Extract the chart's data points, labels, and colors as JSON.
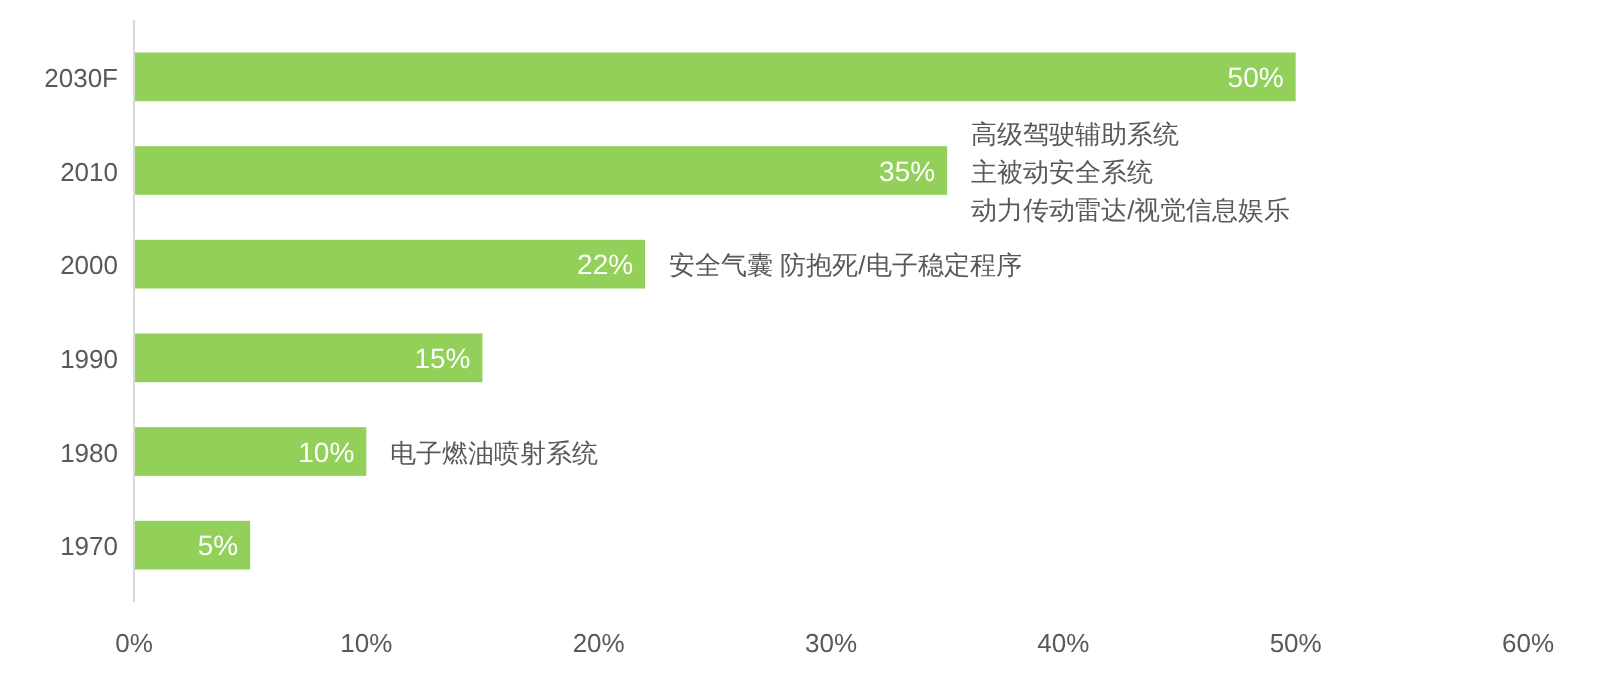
{
  "chart_data": {
    "type": "bar",
    "orientation": "horizontal",
    "categories": [
      "2030F",
      "2010",
      "2000",
      "1990",
      "1980",
      "1970"
    ],
    "values": [
      50,
      35,
      22,
      15,
      10,
      5
    ],
    "value_labels": [
      "50%",
      "35%",
      "22%",
      "15%",
      "10%",
      "5%"
    ],
    "color": "#92d05a",
    "xlim": [
      0,
      60
    ],
    "xticks": [
      {
        "value": 0,
        "label": "0%"
      },
      {
        "value": 10,
        "label": "10%"
      },
      {
        "value": 20,
        "label": "20%"
      },
      {
        "value": 30,
        "label": "30%"
      },
      {
        "value": 40,
        "label": "40%"
      },
      {
        "value": 50,
        "label": "50%"
      },
      {
        "value": 60,
        "label": "60%"
      }
    ],
    "grid": false,
    "annotations": [
      {
        "text": "高级驾驶辅助系统",
        "x": 35,
        "y": "2010"
      },
      {
        "text": "主被动安全系统",
        "x": 35,
        "y": "2010"
      },
      {
        "text": "动力传动雷达/视觉信息娱乐",
        "x": 35,
        "y": "2010"
      },
      {
        "text": "安全气囊 防抱死/电子稳定程序",
        "x": 22,
        "y": "2000"
      },
      {
        "text": "电子燃油喷射系统",
        "x": 10,
        "y": "1980"
      }
    ]
  }
}
